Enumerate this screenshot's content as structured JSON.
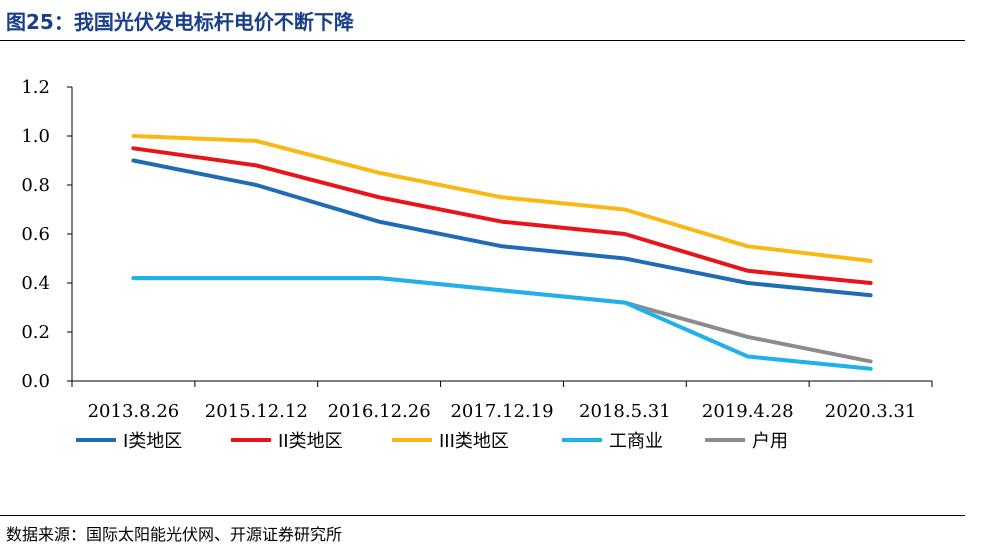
{
  "header": {
    "title": "图25：我国光伏发电标杆电价不断下降"
  },
  "footer": {
    "source": "数据来源：国际太阳能光伏网、开源证券研究所"
  },
  "chart_data": {
    "type": "line",
    "title": "",
    "xlabel": "",
    "ylabel": "",
    "categories": [
      "2013.8.26",
      "2015.12.12",
      "2016.12.26",
      "2017.12.19",
      "2018.5.31",
      "2019.4.28",
      "2020.3.31"
    ],
    "ylim": [
      0,
      1.2
    ],
    "yticks": [
      "0.0",
      "0.2",
      "0.4",
      "0.6",
      "0.8",
      "1.0",
      "1.2"
    ],
    "grid": false,
    "legend_position": "bottom",
    "series": [
      {
        "name": "I类地区",
        "color": "#1f6bb5",
        "values": [
          0.9,
          0.8,
          0.65,
          0.55,
          0.5,
          0.4,
          0.35
        ]
      },
      {
        "name": "II类地区",
        "color": "#e8141a",
        "values": [
          0.95,
          0.88,
          0.75,
          0.65,
          0.6,
          0.45,
          0.4
        ]
      },
      {
        "name": "III类地区",
        "color": "#f7b914",
        "values": [
          1.0,
          0.98,
          0.85,
          0.75,
          0.7,
          0.55,
          0.49
        ]
      },
      {
        "name": "工商业",
        "color": "#1fb1ea",
        "values": [
          0.42,
          0.42,
          0.42,
          0.37,
          0.32,
          0.1,
          0.05
        ]
      },
      {
        "name": "户用",
        "color": "#8c8c8c",
        "values": [
          0.42,
          0.42,
          0.42,
          0.37,
          0.32,
          0.18,
          0.08
        ]
      }
    ]
  }
}
